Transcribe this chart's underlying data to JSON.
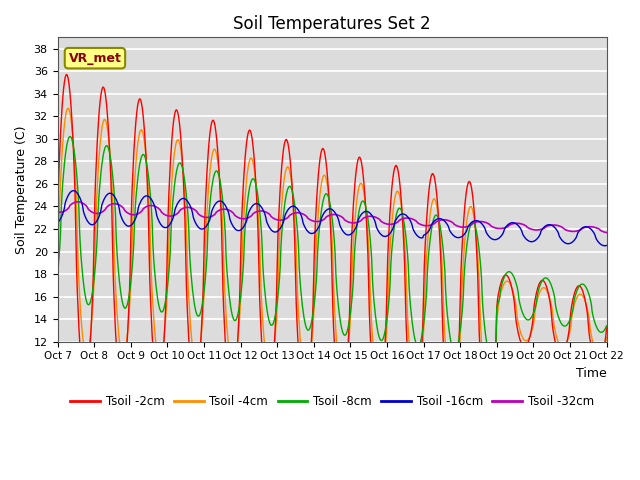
{
  "title": "Soil Temperatures Set 2",
  "xlabel": "Time",
  "ylabel": "Soil Temperature (C)",
  "ylim": [
    12,
    39
  ],
  "yticks": [
    12,
    14,
    16,
    18,
    20,
    22,
    24,
    26,
    28,
    30,
    32,
    34,
    36,
    38
  ],
  "x_labels": [
    "Oct 7",
    "Oct 8",
    "Oct 9",
    "Oct 10",
    "Oct 11",
    "Oct 12",
    "Oct 13",
    "Oct 14",
    "Oct 15",
    "Oct 16",
    "Oct 17",
    "Oct 18",
    "Oct 19",
    "Oct 20",
    "Oct 21",
    "Oct 22"
  ],
  "annotation": "VR_met",
  "colors": {
    "2cm": "#FF0000",
    "4cm": "#FF8C00",
    "8cm": "#00AA00",
    "16cm": "#0000CC",
    "32cm": "#BB00BB"
  },
  "legend_labels": [
    "Tsoil -2cm",
    "Tsoil -4cm",
    "Tsoil -8cm",
    "Tsoil -16cm",
    "Tsoil -32cm"
  ],
  "plot_bg": "#DCDCDC"
}
